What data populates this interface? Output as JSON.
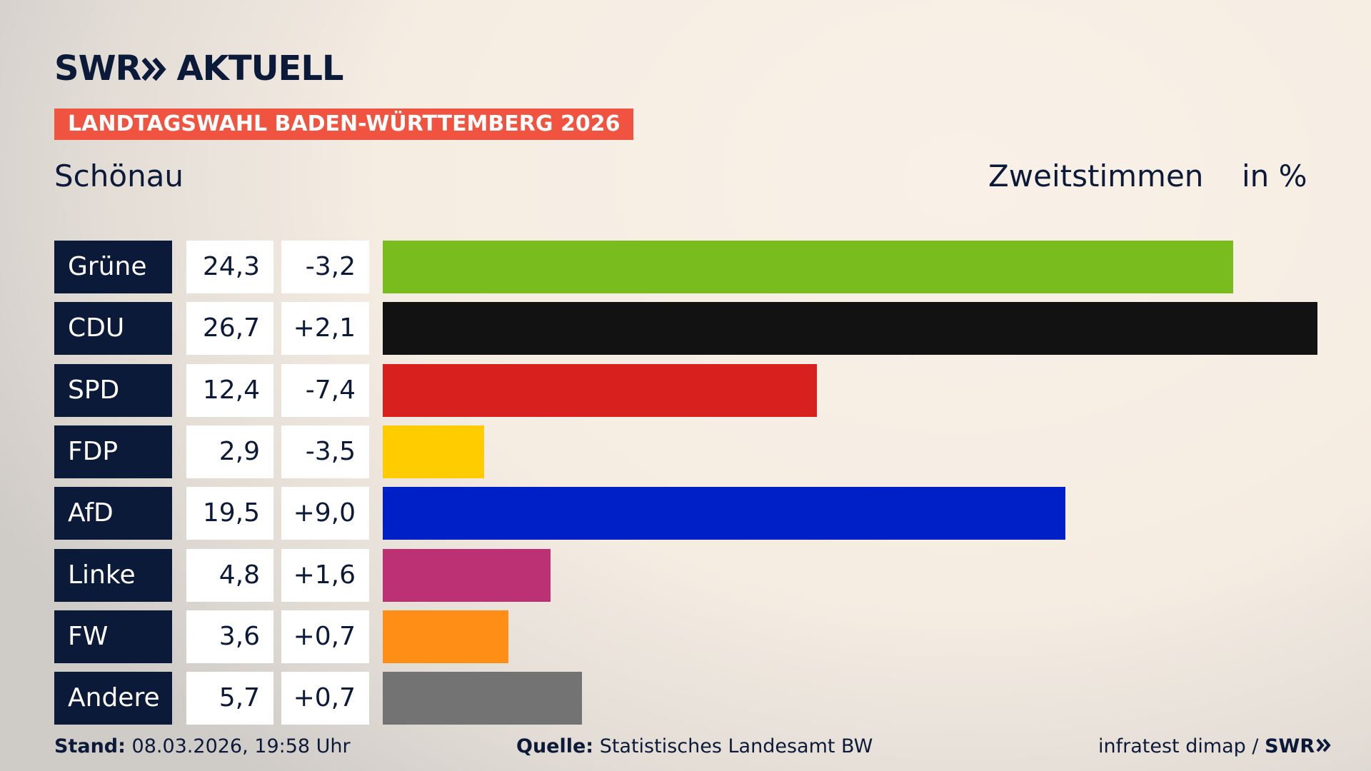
{
  "logo": {
    "brand": "SWR",
    "product": "AKTUELL"
  },
  "header": {
    "banner": "LANDTAGSWAHL BADEN-WÜRTTEMBERG 2026",
    "region": "Schönau"
  },
  "chart_data": {
    "type": "bar",
    "title": "Zweitstimmen",
    "unit": "in %",
    "categories": [
      "Grüne",
      "CDU",
      "SPD",
      "FDP",
      "AfD",
      "Linke",
      "FW",
      "Andere"
    ],
    "values": [
      24.3,
      26.7,
      12.4,
      2.9,
      19.5,
      4.8,
      3.6,
      5.7
    ],
    "value_labels": [
      "24,3",
      "26,7",
      "12,4",
      "2,9",
      "19,5",
      "4,8",
      "3,6",
      "5,7"
    ],
    "changes": [
      "-3,2",
      "+2,1",
      "-7,4",
      "-3,5",
      "+9,0",
      "+1,6",
      "+0,7",
      "+0,7"
    ],
    "colors": [
      "#79bc1d",
      "#121212",
      "#d8211f",
      "#ffcc00",
      "#0020c7",
      "#bc3074",
      "#ff8e17",
      "#737373"
    ]
  },
  "footer": {
    "stand_label": "Stand:",
    "stand": "08.03.2026, 19:58 Uhr",
    "source_label": "Quelle:",
    "source": "Statistisches Landesamt BW",
    "credit": "infratest dimap /",
    "brand": "SWR"
  }
}
